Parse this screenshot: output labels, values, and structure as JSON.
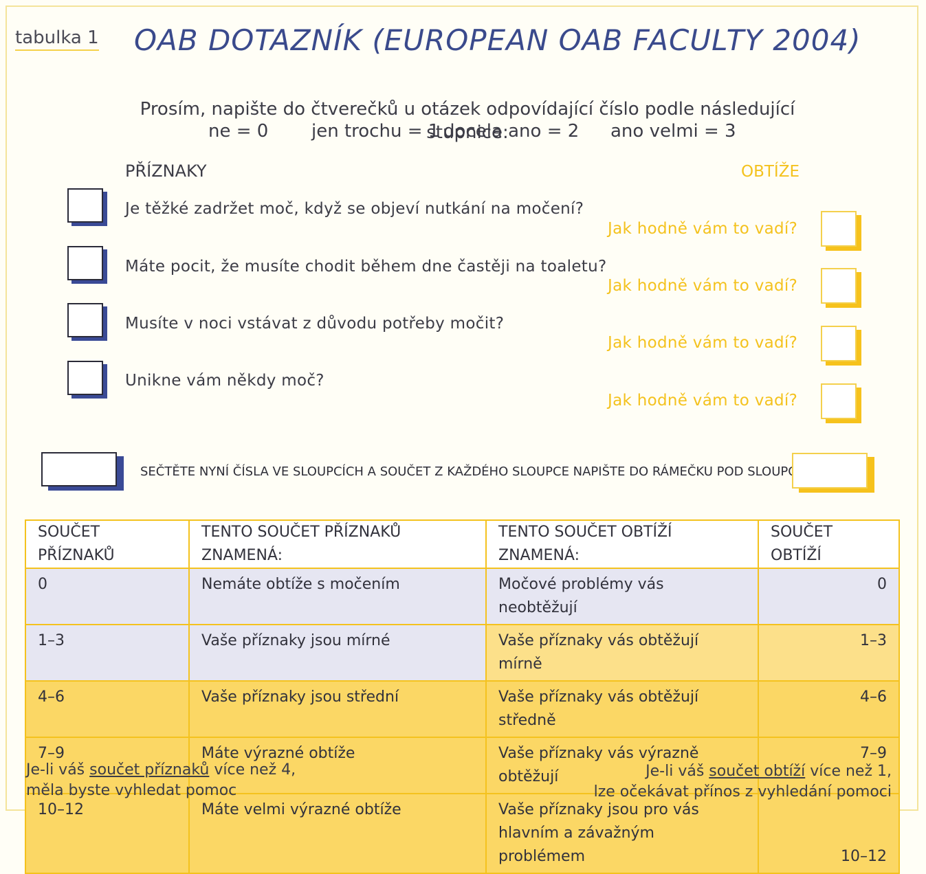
{
  "tag": "tabulka 1",
  "title": "OAB DOTAZNÍK (EUROPEAN OAB FACULTY 2004)",
  "instruction": "Prosím, napište do čtverečků u otázek odpovídající číslo podle následující stupnice:",
  "scale": [
    "ne = 0",
    "jen trochu = 1",
    "docela ano = 2",
    "ano velmi = 3"
  ],
  "header_symptoms": "PŘÍZNAKY",
  "header_bother": "OBTÍŽE",
  "questions": [
    {
      "text": "Je těžké zadržet moč, když se objeví nutkání na močení?",
      "bother": "Jak hodně vám to vadí?"
    },
    {
      "text": "Máte pocit, že musíte chodit během dne častěji na toaletu?",
      "bother": "Jak hodně vám to vadí?"
    },
    {
      "text": "Musíte v noci vstávat z důvodu potřeby močit?",
      "bother": "Jak hodně vám to vadí?"
    },
    {
      "text": "Unikne vám někdy moč?",
      "bother": "Jak hodně vám to vadí?"
    }
  ],
  "sum_instruction": "SEČTĚTE NYNÍ ČÍSLA VE SLOUPCÍCH A SOUČET Z KAŽDÉHO SLOUPCE NAPIŠTE DO RÁMEČKU POD SLOUPCEM",
  "table": {
    "headers": [
      "SOUČET PŘÍZNAKŮ",
      "TENTO SOUČET PŘÍZNAKŮ ZNAMENÁ:",
      "TENTO SOUČET OBTÍŽÍ ZNAMENÁ:",
      "SOUČET OBTÍŽÍ"
    ],
    "rows": [
      [
        "0",
        "Nemáte obtíže s močením",
        "Močové problémy vás neobtěžují",
        "0"
      ],
      [
        "1–3",
        "Vaše příznaky jsou mírné",
        "Vaše příznaky vás obtěžují mírně",
        "1–3"
      ],
      [
        "4–6",
        "Vaše příznaky jsou střední",
        "Vaše příznaky vás obtěžují středně",
        "4–6"
      ],
      [
        "7–9",
        "Máte výrazné obtíže",
        "Vaše příznaky vás výrazně obtěžují",
        "7–9"
      ],
      [
        "10–12",
        "Máte velmi výrazné obtíže",
        "Vaše příznaky jsou pro vás hlavním a závažným problémem",
        "10–12"
      ]
    ]
  },
  "footer_left": {
    "pre": "Je-li váš ",
    "link": "součet příznaků",
    "post": " více než 4,",
    "line2": "měla byste vyhledat pomoc"
  },
  "footer_right": {
    "pre": "Je-li váš ",
    "link": "součet obtíží",
    "post": " více než 1,",
    "line2": "lze očekávat přínos z vyhledání pomoci"
  },
  "colors": {
    "navy": "#3a4a8c",
    "yellow": "#f4c21e",
    "lavender": "#e6e6f2"
  }
}
